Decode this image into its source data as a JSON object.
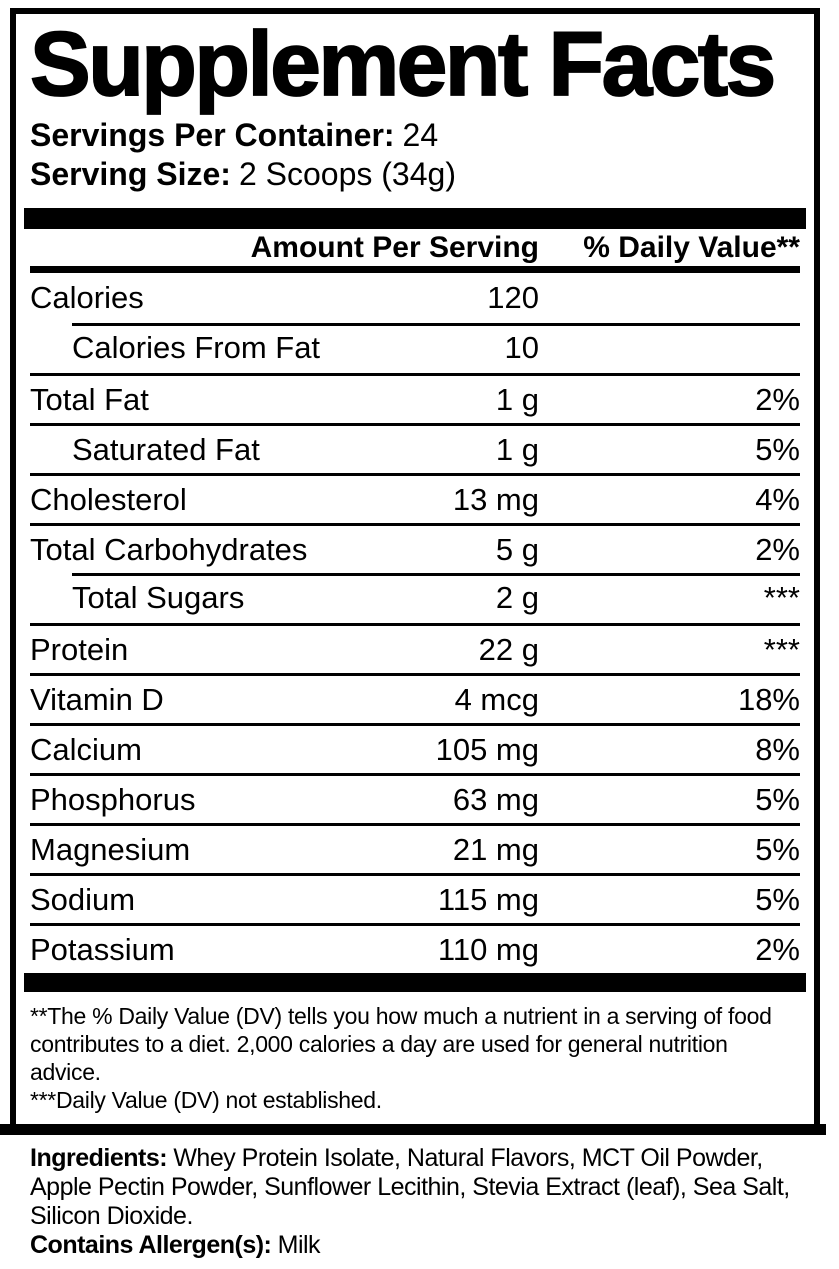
{
  "colors": {
    "ink": "#000000",
    "paper": "#ffffff"
  },
  "title": "Supplement Facts",
  "servings_per_container": {
    "label": "Servings Per Container:",
    "value": "24"
  },
  "serving_size": {
    "label": "Serving Size:",
    "value": "2 Scoops (34g)"
  },
  "table": {
    "headers": {
      "amount": "Amount Per Serving",
      "dv": "% Daily Value**"
    },
    "rows": [
      {
        "name": "Calories",
        "amount": "120",
        "dv": "",
        "indent": false,
        "rule": "none"
      },
      {
        "name": "Calories From Fat",
        "amount": "10",
        "dv": "",
        "indent": true,
        "rule": "indent"
      },
      {
        "name": "Total Fat",
        "amount": "1 g",
        "dv": "2%",
        "indent": false,
        "rule": "full"
      },
      {
        "name": "Saturated Fat",
        "amount": "1 g",
        "dv": "5%",
        "indent": true,
        "rule": "full"
      },
      {
        "name": "Cholesterol",
        "amount": "13 mg",
        "dv": "4%",
        "indent": false,
        "rule": "full"
      },
      {
        "name": "Total Carbohydrates",
        "amount": "5 g",
        "dv": "2%",
        "indent": false,
        "rule": "full"
      },
      {
        "name": "Total Sugars",
        "amount": "2 g",
        "dv": "***",
        "indent": true,
        "rule": "indent"
      },
      {
        "name": "Protein",
        "amount": "22 g",
        "dv": "***",
        "indent": false,
        "rule": "full"
      },
      {
        "name": "Vitamin D",
        "amount": "4 mcg",
        "dv": "18%",
        "indent": false,
        "rule": "full"
      },
      {
        "name": "Calcium",
        "amount": "105 mg",
        "dv": "8%",
        "indent": false,
        "rule": "full"
      },
      {
        "name": "Phosphorus",
        "amount": "63 mg",
        "dv": "5%",
        "indent": false,
        "rule": "full"
      },
      {
        "name": "Magnesium",
        "amount": "21 mg",
        "dv": "5%",
        "indent": false,
        "rule": "full"
      },
      {
        "name": "Sodium",
        "amount": "115 mg",
        "dv": "5%",
        "indent": false,
        "rule": "full"
      },
      {
        "name": "Potassium",
        "amount": "110 mg",
        "dv": "2%",
        "indent": false,
        "rule": "full"
      }
    ]
  },
  "footnotes": [
    "**The % Daily Value (DV) tells you how much a nutrient in a serving of food contributes to a diet. 2,000 calories a day are used for general nutrition advice.",
    "***Daily Value (DV) not established."
  ],
  "ingredients": {
    "label": "Ingredients:",
    "value": "Whey Protein Isolate, Natural Flavors, MCT Oil Powder, Apple Pectin Powder, Sunflower Lecithin, Stevia Extract (leaf), Sea Salt, Silicon Dioxide."
  },
  "allergens": {
    "label": "Contains Allergen(s):",
    "value": "Milk"
  }
}
